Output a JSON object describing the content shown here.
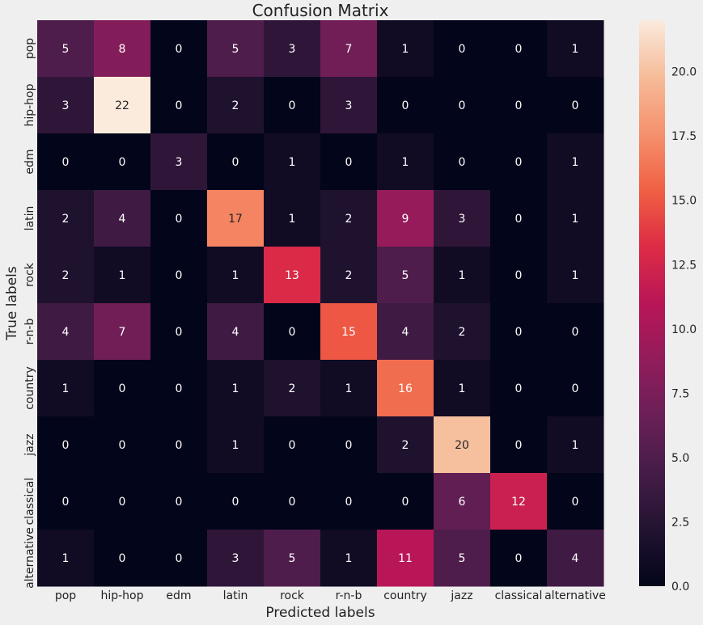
{
  "chart_data": {
    "type": "heatmap",
    "title": "Confusion Matrix",
    "xlabel": "Predicted labels",
    "ylabel": "True labels",
    "x_categories": [
      "pop",
      "hip-hop",
      "edm",
      "latin",
      "rock",
      "r-n-b",
      "country",
      "jazz",
      "classical",
      "alternative"
    ],
    "y_categories": [
      "pop",
      "hip-hop",
      "edm",
      "latin",
      "rock",
      "r-n-b",
      "country",
      "jazz",
      "classical",
      "alternative"
    ],
    "values": [
      [
        5,
        8,
        0,
        5,
        3,
        7,
        1,
        0,
        0,
        1
      ],
      [
        3,
        22,
        0,
        2,
        0,
        3,
        0,
        0,
        0,
        0
      ],
      [
        0,
        0,
        3,
        0,
        1,
        0,
        1,
        0,
        0,
        1
      ],
      [
        2,
        4,
        0,
        17,
        1,
        2,
        9,
        3,
        0,
        1
      ],
      [
        2,
        1,
        0,
        1,
        13,
        2,
        5,
        1,
        0,
        1
      ],
      [
        4,
        7,
        0,
        4,
        0,
        15,
        4,
        2,
        0,
        0
      ],
      [
        1,
        0,
        0,
        1,
        2,
        1,
        16,
        1,
        0,
        0
      ],
      [
        0,
        0,
        0,
        1,
        0,
        0,
        2,
        20,
        0,
        1
      ],
      [
        0,
        0,
        0,
        0,
        0,
        0,
        0,
        6,
        12,
        0
      ],
      [
        1,
        0,
        0,
        3,
        5,
        1,
        11,
        5,
        0,
        4
      ]
    ],
    "colormap": "rocket",
    "vmin": 0,
    "vmax": 22,
    "colorbar_ticks": [
      "0.0",
      "2.5",
      "5.0",
      "7.5",
      "10.0",
      "12.5",
      "15.0",
      "17.5",
      "20.0"
    ],
    "colorbar_tick_values": [
      0,
      2.5,
      5,
      7.5,
      10,
      12.5,
      15,
      17.5,
      20
    ]
  }
}
